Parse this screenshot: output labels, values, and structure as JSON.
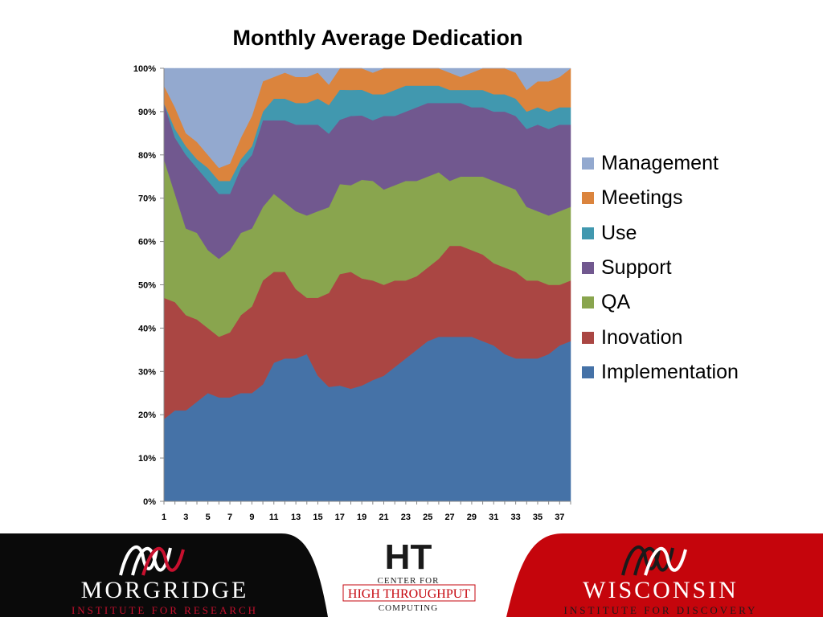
{
  "chart_data": {
    "type": "area",
    "stacked": true,
    "normalized": true,
    "title": "Monthly Average Dedication",
    "xlabel": "",
    "ylabel": "",
    "ylim": [
      0,
      100
    ],
    "yticks": [
      "0%",
      "10%",
      "20%",
      "30%",
      "40%",
      "50%",
      "60%",
      "70%",
      "80%",
      "90%",
      "100%"
    ],
    "xtick_labels": [
      "1",
      "3",
      "5",
      "7",
      "9",
      "11",
      "13",
      "15",
      "17",
      "19",
      "21",
      "23",
      "25",
      "27",
      "29",
      "31",
      "33",
      "35",
      "37"
    ],
    "x": [
      1,
      2,
      3,
      4,
      5,
      6,
      7,
      8,
      9,
      10,
      11,
      12,
      13,
      14,
      15,
      16,
      17,
      18,
      19,
      20,
      21,
      22,
      23,
      24,
      25,
      26,
      27,
      28,
      29,
      30,
      31,
      32,
      33,
      34,
      35,
      36,
      37,
      38
    ],
    "legend_position": "right",
    "series": [
      {
        "name": "Implementation",
        "color": "#4572A7",
        "values": [
          19,
          21,
          21,
          23,
          25,
          24,
          24,
          25,
          25,
          27,
          32,
          33,
          33,
          34,
          29,
          28,
          27,
          26,
          27,
          28,
          29,
          31,
          33,
          35,
          37,
          38,
          38,
          38,
          38,
          37,
          36,
          34,
          33,
          33,
          33,
          34,
          36,
          37
        ]
      },
      {
        "name": "Inovation",
        "color": "#AA4643",
        "values": [
          28,
          25,
          22,
          19,
          15,
          14,
          15,
          18,
          20,
          24,
          21,
          20,
          16,
          13,
          18,
          23,
          26,
          27,
          25,
          23,
          21,
          20,
          18,
          17,
          17,
          18,
          21,
          21,
          20,
          20,
          19,
          20,
          20,
          18,
          18,
          16,
          14,
          14
        ]
      },
      {
        "name": "QA",
        "color": "#89A54E",
        "values": [
          32,
          25,
          20,
          20,
          18,
          18,
          19,
          19,
          18,
          17,
          18,
          16,
          18,
          19,
          20,
          21,
          21,
          20,
          23,
          23,
          22,
          22,
          23,
          22,
          21,
          20,
          15,
          16,
          17,
          18,
          19,
          19,
          19,
          17,
          16,
          16,
          17,
          17
        ]
      },
      {
        "name": "Support",
        "color": "#71588F",
        "values": [
          13,
          13,
          17,
          15,
          16,
          15,
          13,
          15,
          17,
          20,
          17,
          19,
          20,
          21,
          20,
          18,
          15,
          16,
          15,
          14,
          17,
          16,
          16,
          17,
          17,
          16,
          18,
          17,
          16,
          16,
          16,
          17,
          17,
          18,
          20,
          20,
          20,
          19
        ]
      },
      {
        "name": "Use",
        "color": "#4198AF",
        "values": [
          0,
          2,
          2,
          2,
          3,
          3,
          3,
          2,
          2,
          2,
          5,
          5,
          5,
          5,
          6,
          7,
          7,
          6,
          6,
          6,
          5,
          6,
          6,
          5,
          4,
          4,
          3,
          3,
          4,
          4,
          4,
          4,
          4,
          4,
          4,
          4,
          4,
          4
        ]
      },
      {
        "name": "Meetings",
        "color": "#DB843D",
        "values": [
          4,
          5,
          3,
          4,
          3,
          3,
          4,
          5,
          7,
          7,
          5,
          6,
          6,
          6,
          6,
          5,
          5,
          5,
          5,
          5,
          6,
          5,
          4,
          4,
          4,
          4,
          4,
          3,
          4,
          5,
          6,
          6,
          6,
          5,
          6,
          7,
          7,
          9
        ]
      },
      {
        "name": "Management",
        "color": "#93A9CF",
        "values": [
          4,
          9,
          15,
          17,
          20,
          23,
          22,
          16,
          11,
          3,
          2,
          1,
          2,
          2,
          1,
          4,
          0,
          0,
          0,
          1,
          0,
          0,
          0,
          0,
          0,
          0,
          1,
          2,
          1,
          0,
          0,
          0,
          1,
          5,
          3,
          3,
          2,
          0
        ]
      }
    ]
  },
  "footer": {
    "left_logo": {
      "name": "MORGRIDGE",
      "subtitle": "INSTITUTE FOR RESEARCH",
      "color": "#c8102e"
    },
    "center_logo": {
      "mark": "HT",
      "line1": "CENTER FOR",
      "line2": "HIGH THROUGHPUT",
      "line3": "COMPUTING",
      "color": "#c5050c"
    },
    "right_logo": {
      "name": "WISCONSIN",
      "subtitle": "INSTITUTE FOR DISCOVERY",
      "color": "#c5050c"
    }
  }
}
